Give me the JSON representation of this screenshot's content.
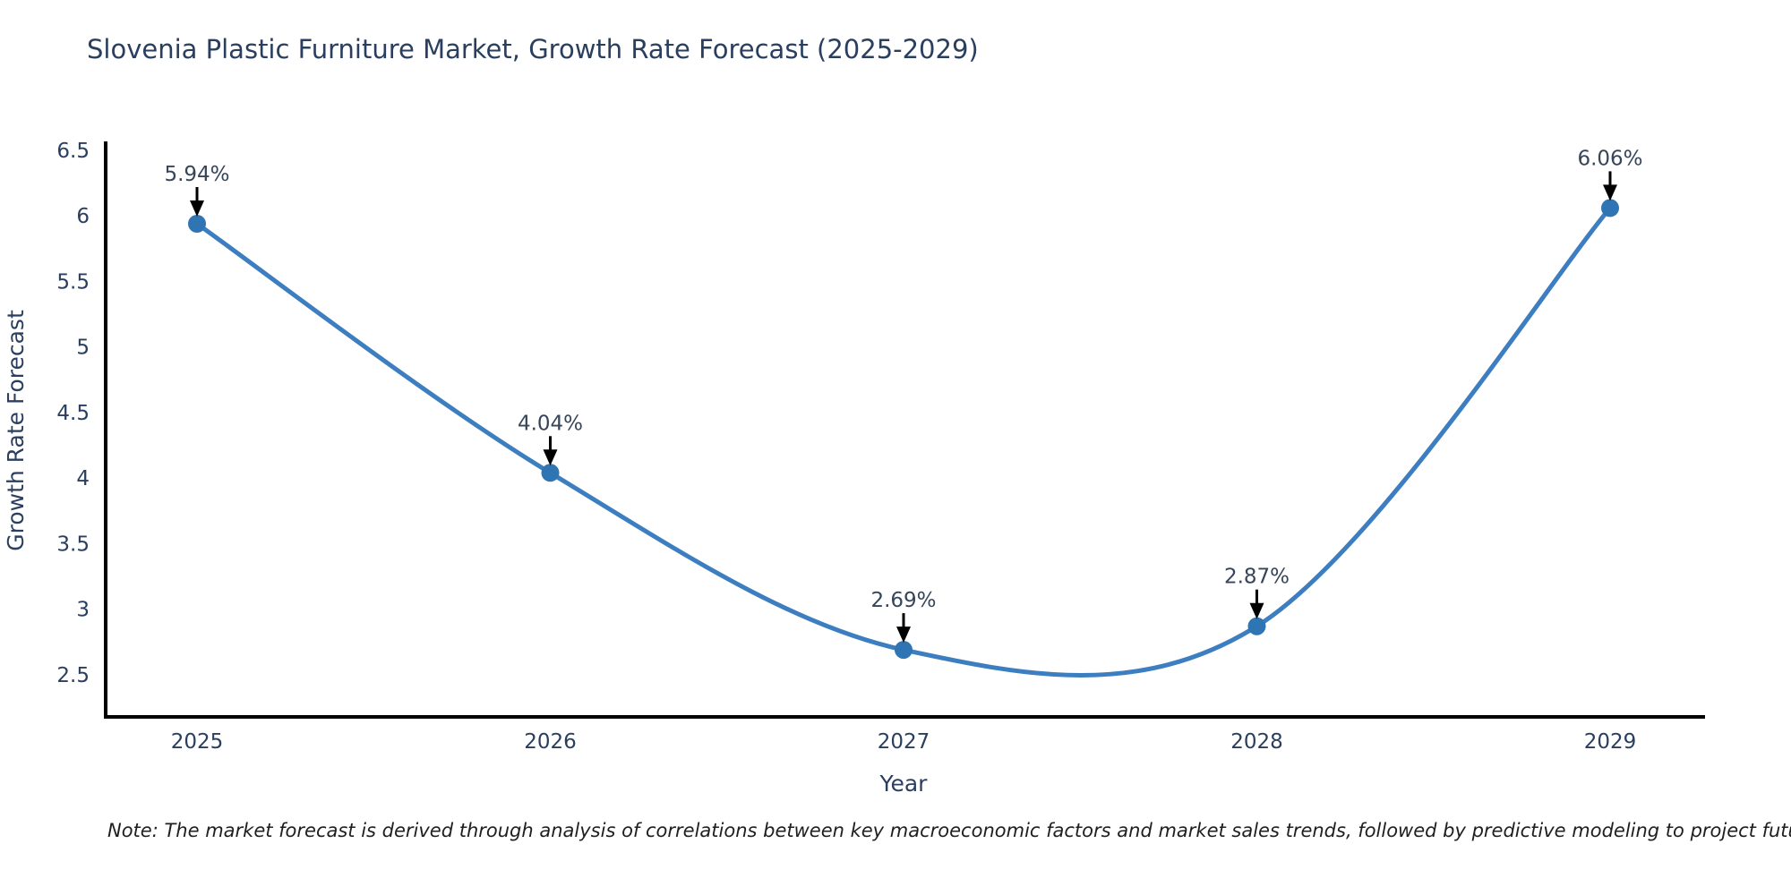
{
  "title": "Slovenia Plastic Furniture Market, Growth Rate Forecast (2025-2029)",
  "note": "Note: The market forecast is derived through analysis of correlations between key macroeconomic factors and market sales trends, followed by predictive modeling to project future sales.",
  "colors": {
    "line": "#3c7ebf",
    "marker": "#2f74b3",
    "axis": "#000000",
    "arrow": "#000000",
    "title_text": "#2a3f5f",
    "tick_text": "#2a3f5f",
    "axis_label_text": "#2a3f5f",
    "annotation_text": "#36455a",
    "note_text": "#1f1f1f",
    "background": "#ffffff"
  },
  "chart_data": {
    "type": "line",
    "line_shape": "spline",
    "title": "Slovenia Plastic Furniture Market, Growth Rate Forecast (2025-2029)",
    "xlabel": "Year",
    "ylabel": "Growth Rate Forecast",
    "categories": [
      "2025",
      "2026",
      "2027",
      "2028",
      "2029"
    ],
    "values": [
      5.94,
      4.04,
      2.69,
      2.87,
      6.06
    ],
    "point_labels": [
      "5.94%",
      "4.04%",
      "2.69%",
      "2.87%",
      "6.06%"
    ],
    "yticks": [
      2.5,
      3,
      3.5,
      4,
      4.5,
      5,
      5.5,
      6,
      6.5
    ],
    "ylim": [
      2.18,
      6.55
    ],
    "grid": false,
    "legend": "none",
    "annotations": "black down-arrows from value labels to markers"
  }
}
